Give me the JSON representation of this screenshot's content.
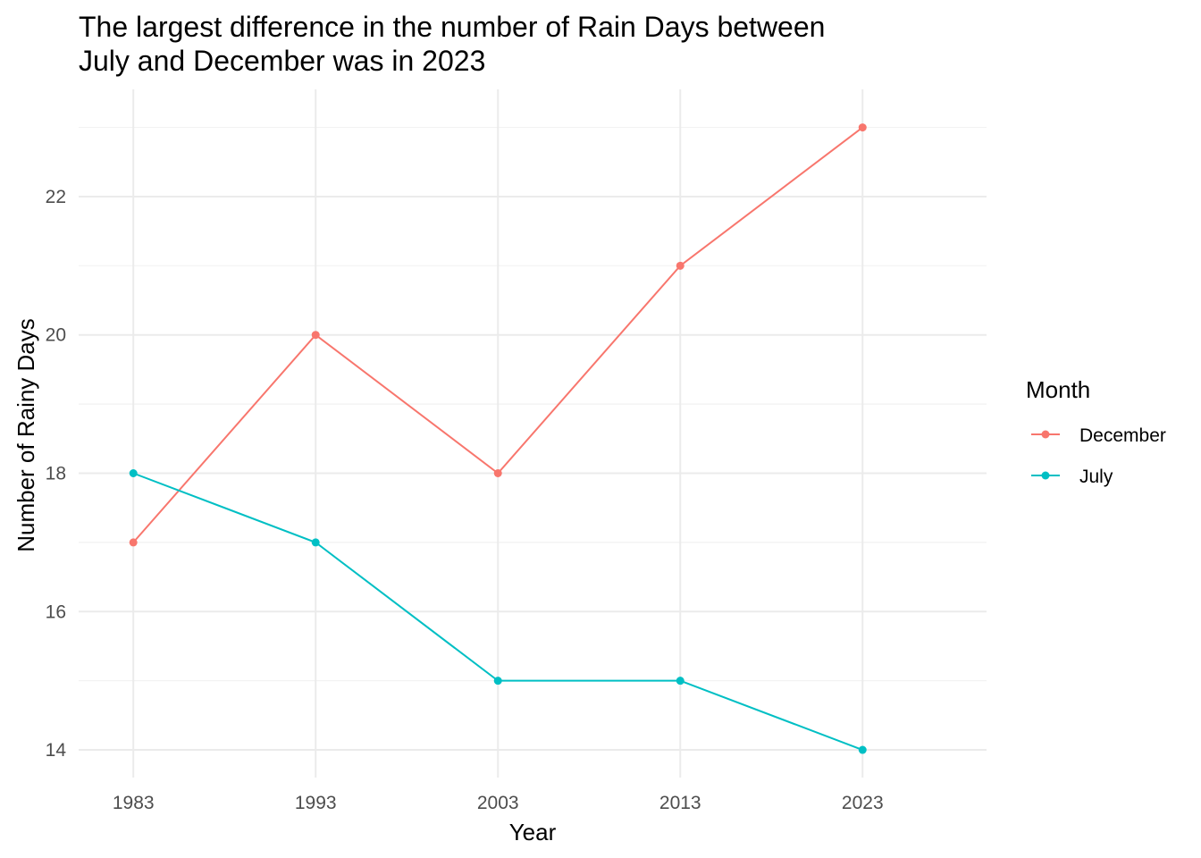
{
  "chart_data": {
    "type": "line",
    "title_lines": [
      "The largest difference in the number of Rain Days between",
      "July and December was in 2023"
    ],
    "xlabel": "Year",
    "ylabel": "Number of Rainy Days",
    "categories": [
      "1983",
      "1993",
      "2003",
      "2013",
      "2023"
    ],
    "x": [
      1983,
      1993,
      2003,
      2013,
      2023
    ],
    "xlim": [
      1980,
      2029.8
    ],
    "ylim": [
      13.6,
      23.55
    ],
    "yticks": [
      14,
      16,
      18,
      20,
      22
    ],
    "grid": true,
    "legend": {
      "title": "Month",
      "position": "right"
    },
    "series": [
      {
        "name": "December",
        "color": "#F8766D",
        "values": [
          17,
          20,
          18,
          21,
          23
        ]
      },
      {
        "name": "July",
        "color": "#00BFC4",
        "values": [
          18,
          17,
          15,
          15,
          14
        ]
      }
    ]
  }
}
